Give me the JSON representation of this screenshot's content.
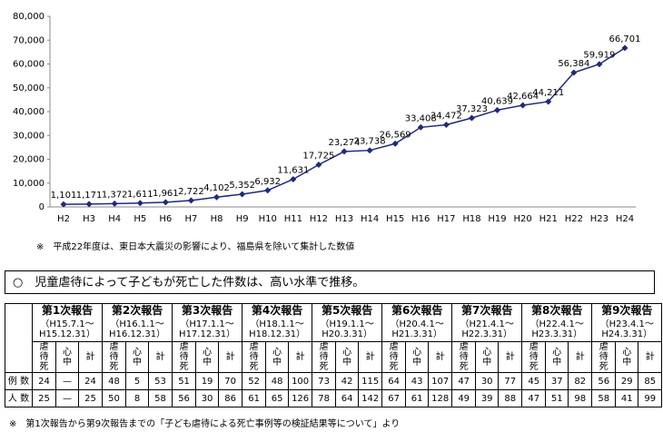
{
  "chart_data": {
    "type": "line",
    "categories": [
      "H2",
      "H3",
      "H4",
      "H5",
      "H6",
      "H7",
      "H8",
      "H9",
      "H10",
      "H11",
      "H12",
      "H13",
      "H14",
      "H15",
      "H16",
      "H17",
      "H18",
      "H19",
      "H20",
      "H21",
      "H22",
      "H23",
      "H24"
    ],
    "values": [
      1101,
      1171,
      1372,
      1611,
      1961,
      2722,
      4102,
      5352,
      6932,
      11631,
      17725,
      23274,
      23738,
      26569,
      33408,
      34472,
      37323,
      40639,
      42664,
      44211,
      56384,
      59919,
      66701
    ],
    "value_labels": [
      "1,101",
      "1,171",
      "1,372",
      "1,611",
      "1,961",
      "2,722",
      "4,102",
      "5,352",
      "6,932",
      "11,631",
      "17,725",
      "23,274",
      "23,738",
      "26,569",
      "33,408",
      "34,472",
      "37,323",
      "40,639",
      "42,664",
      "44,211",
      "56,384",
      "59,919",
      "66,701"
    ],
    "color": "#1f2a7a",
    "ylim": [
      0,
      80000
    ],
    "yticks": [
      0,
      {
        "value": 10000,
        "label": "10,000"
      },
      {
        "value": 20000,
        "label": "20,000"
      },
      {
        "value": 30000,
        "label": "30,000"
      },
      {
        "value": 40000,
        "label": "40,000"
      },
      {
        "value": 50000,
        "label": "50,000"
      },
      {
        "value": 60000,
        "label": "60,000"
      },
      {
        "value": 70000,
        "label": "70,000"
      },
      {
        "value": 80000,
        "label": "80,000"
      }
    ],
    "grid": false
  },
  "note": "※　平成22年度は、東日本大震災の影響により、福島県を除いて集計した数値",
  "headline": "○　児童虐待によって子どもが死亡した件数は、高い水準で推移。",
  "table": {
    "reports": [
      {
        "title": "第1次報告",
        "period": [
          "（H15.7.1～",
          "H15.12.31）"
        ]
      },
      {
        "title": "第2次報告",
        "period": [
          "（H16.1.1～",
          "H16.12.31）"
        ]
      },
      {
        "title": "第3次報告",
        "period": [
          "（H17.1.1～",
          "H17.12.31）"
        ]
      },
      {
        "title": "第4次報告",
        "period": [
          "（H18.1.1～",
          "H18.12.31）"
        ]
      },
      {
        "title": "第5次報告",
        "period": [
          "（H19.1.1～",
          "H20.3.31）"
        ]
      },
      {
        "title": "第6次報告",
        "period": [
          "（H20.4.1～",
          "H21.3.31）"
        ]
      },
      {
        "title": "第7次報告",
        "period": [
          "（H21.4.1～",
          "H22.3.31）"
        ]
      },
      {
        "title": "第8次報告",
        "period": [
          "（H22.4.1～",
          "H23.3.31）"
        ]
      },
      {
        "title": "第9次報告",
        "period": [
          "（H23.4.1～",
          "H24.3.31）"
        ]
      }
    ],
    "subheaders": [
      "虐待死",
      "心中",
      "計"
    ],
    "rows": [
      {
        "label": "例 数",
        "cells": [
          24,
          "—",
          24,
          48,
          5,
          53,
          51,
          19,
          70,
          52,
          48,
          100,
          73,
          42,
          115,
          64,
          43,
          107,
          47,
          30,
          77,
          45,
          37,
          82,
          56,
          29,
          85
        ]
      },
      {
        "label": "人 数",
        "cells": [
          25,
          "—",
          25,
          50,
          8,
          58,
          56,
          30,
          86,
          61,
          65,
          126,
          78,
          64,
          142,
          67,
          61,
          128,
          49,
          39,
          88,
          47,
          51,
          98,
          58,
          41,
          99
        ]
      }
    ]
  },
  "footnote": "※　第1次報告から第9次報告までの「子ども虐待による死亡事例等の検証結果等について」より"
}
